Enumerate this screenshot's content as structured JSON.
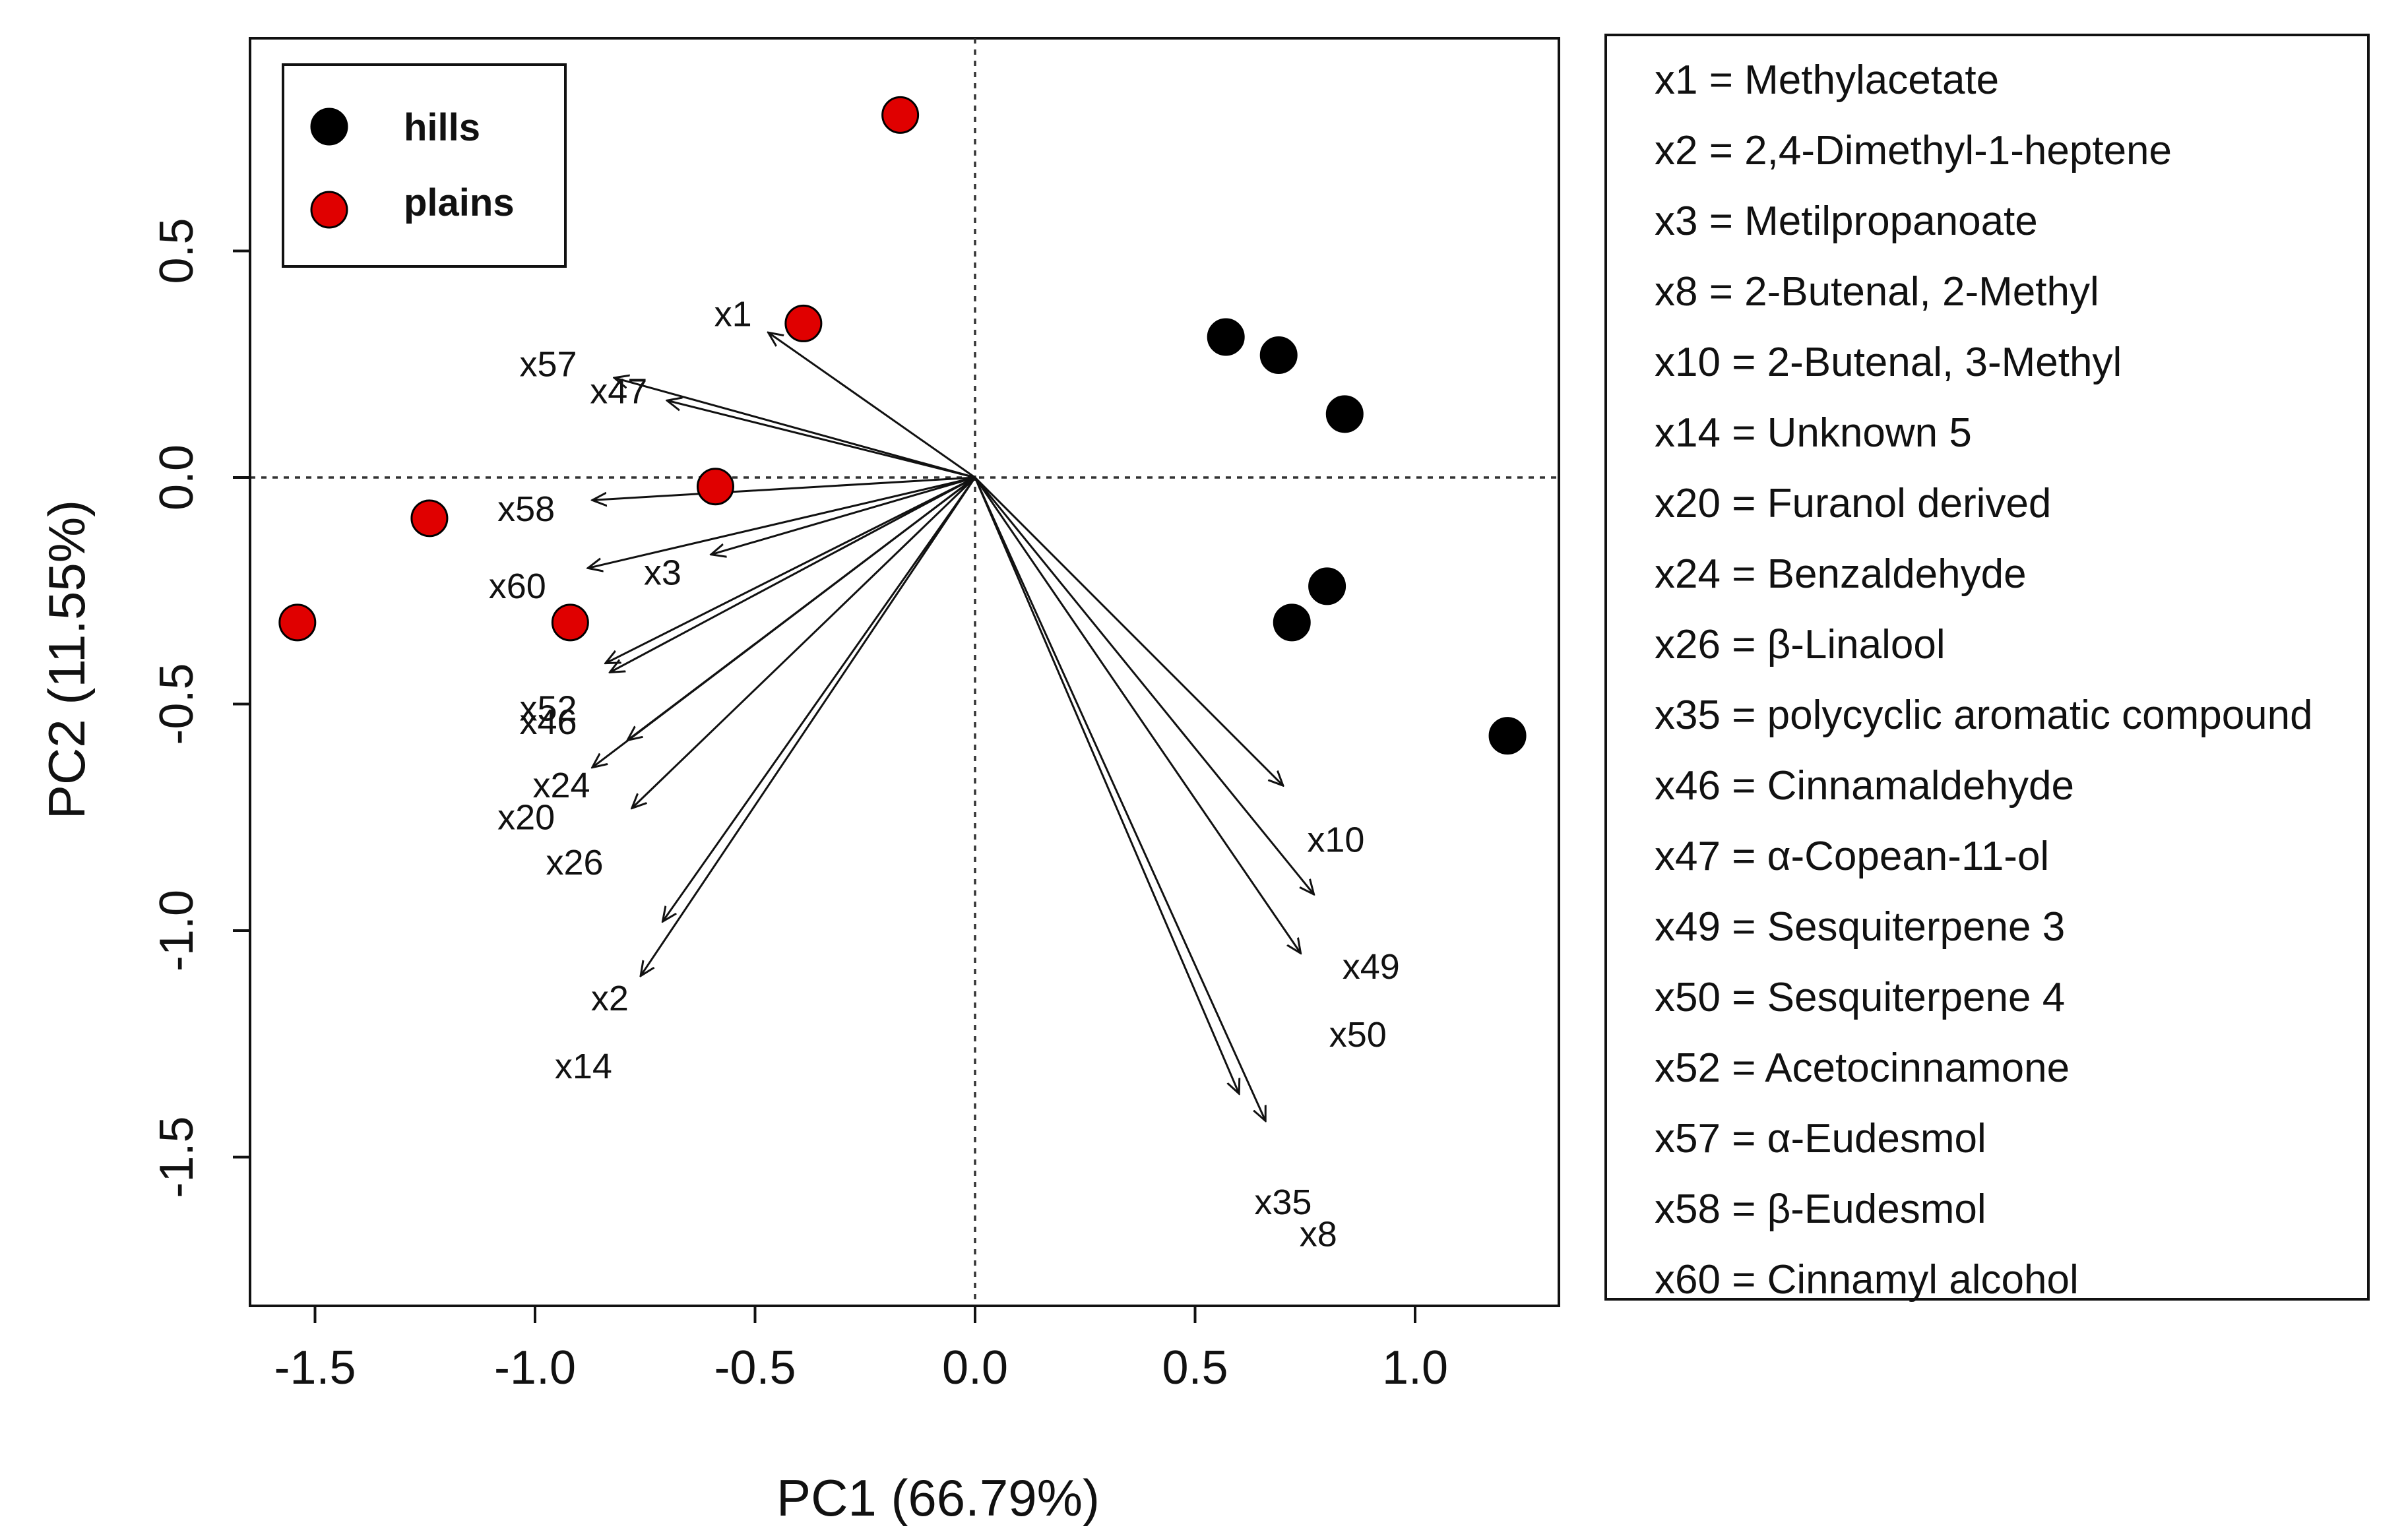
{
  "chart_data": {
    "type": "scatter",
    "subtype": "pca-biplot",
    "xlabel": "PC1 (66.79%)",
    "ylabel": "PC2 (11.55%)",
    "xlim": [
      -1.65,
      1.32
    ],
    "ylim": [
      -1.83,
      0.97
    ],
    "xticks": [
      {
        "value": -1.5,
        "label": "-1.5"
      },
      {
        "value": -1.0,
        "label": "-1.0"
      },
      {
        "value": -0.5,
        "label": "-0.5"
      },
      {
        "value": 0.0,
        "label": "0.0"
      },
      {
        "value": 0.5,
        "label": "0.5"
      },
      {
        "value": 1.0,
        "label": "1.0"
      }
    ],
    "yticks": [
      {
        "value": 0.5,
        "label": "0.5"
      },
      {
        "value": 0.0,
        "label": "0.0"
      },
      {
        "value": -0.5,
        "label": "-0.5"
      },
      {
        "value": -1.0,
        "label": "-1.0"
      },
      {
        "value": -1.5,
        "label": "-1.5"
      }
    ],
    "grid": false,
    "reference_lines": {
      "x": 0,
      "y": 0,
      "style": "dotted"
    },
    "legend_position": "top-left",
    "series": [
      {
        "name": "hills",
        "color": "#000000",
        "points": [
          {
            "x": 0.57,
            "y": 0.31
          },
          {
            "x": 0.69,
            "y": 0.27
          },
          {
            "x": 0.84,
            "y": 0.14
          },
          {
            "x": 0.8,
            "y": -0.24
          },
          {
            "x": 0.72,
            "y": -0.32
          },
          {
            "x": 1.21,
            "y": -0.57
          }
        ]
      },
      {
        "name": "plains",
        "color": "#e00000",
        "points": [
          {
            "x": -0.17,
            "y": 0.8
          },
          {
            "x": -0.39,
            "y": 0.34
          },
          {
            "x": -0.59,
            "y": -0.02
          },
          {
            "x": -1.24,
            "y": -0.09
          },
          {
            "x": -1.54,
            "y": -0.32
          },
          {
            "x": -0.92,
            "y": -0.32
          }
        ]
      }
    ],
    "loadings": [
      {
        "var": "x1",
        "x": -0.47,
        "y": 0.32,
        "label_x": -0.55,
        "label_y": 0.36
      },
      {
        "var": "x57",
        "x": -0.82,
        "y": 0.22,
        "label_x": -0.97,
        "label_y": 0.25
      },
      {
        "var": "x47",
        "x": -0.7,
        "y": 0.17,
        "label_x": -0.81,
        "label_y": 0.19
      },
      {
        "var": "x58",
        "x": -0.87,
        "y": -0.05,
        "label_x": -1.02,
        "label_y": -0.07
      },
      {
        "var": "x3",
        "x": -0.6,
        "y": -0.17,
        "label_x": -0.71,
        "label_y": -0.21
      },
      {
        "var": "x60",
        "x": -0.88,
        "y": -0.2,
        "label_x": -1.04,
        "label_y": -0.24
      },
      {
        "var": "x52",
        "x": -0.84,
        "y": -0.41,
        "label_x": -0.97,
        "label_y": -0.51
      },
      {
        "var": "x46",
        "x": -0.83,
        "y": -0.43,
        "label_x": -0.97,
        "label_y": -0.54
      },
      {
        "var": "x24",
        "x": -0.79,
        "y": -0.58,
        "label_x": -0.94,
        "label_y": -0.68
      },
      {
        "var": "x20",
        "x": -0.87,
        "y": -0.64,
        "label_x": -1.02,
        "label_y": -0.75
      },
      {
        "var": "x26",
        "x": -0.78,
        "y": -0.73,
        "label_x": -0.91,
        "label_y": -0.85
      },
      {
        "var": "x2",
        "x": -0.71,
        "y": -0.98,
        "label_x": -0.83,
        "label_y": -1.15
      },
      {
        "var": "x14",
        "x": -0.76,
        "y": -1.1,
        "label_x": -0.89,
        "label_y": -1.3
      },
      {
        "var": "x10",
        "x": 0.7,
        "y": -0.68,
        "label_x": 0.82,
        "label_y": -0.8
      },
      {
        "var": "x49",
        "x": 0.77,
        "y": -0.92,
        "label_x": 0.9,
        "label_y": -1.08
      },
      {
        "var": "x50",
        "x": 0.74,
        "y": -1.05,
        "label_x": 0.87,
        "label_y": -1.23
      },
      {
        "var": "x35",
        "x": 0.6,
        "y": -1.36,
        "label_x": 0.7,
        "label_y": -1.6
      },
      {
        "var": "x8",
        "x": 0.66,
        "y": -1.42,
        "label_x": 0.78,
        "label_y": -1.67
      }
    ]
  },
  "variable_key": [
    "x1 = Methylacetate",
    "x2 = 2,4-Dimethyl-1-heptene",
    "x3 = Metilpropanoate",
    "x8 = 2-Butenal, 2-Methyl",
    "x10 = 2-Butenal, 3-Methyl",
    "x14 = Unknown 5",
    "x20 = Furanol derived",
    "x24 = Benzaldehyde",
    "x26 = β-Linalool",
    "x35 = polycyclic aromatic compound",
    "x46 = Cinnamaldehyde",
    "x47 = α-Copean-11-ol",
    "x49 = Sesquiterpene 3",
    "x50 = Sesquiterpene 4",
    "x52 = Acetocinnamone",
    "x57 = α-Eudesmol",
    "x58 = β-Eudesmol",
    "x60 = Cinnamyl alcohol"
  ]
}
